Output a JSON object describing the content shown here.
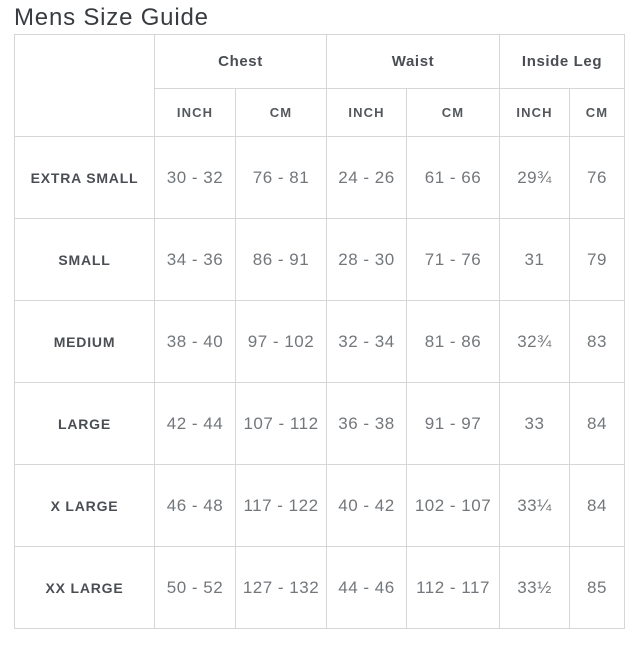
{
  "page": {
    "title": "Mens Size Guide"
  },
  "colors": {
    "border": "#d6d6d6",
    "title_text": "#383c40",
    "header_text": "#4a4e53",
    "value_text": "#73777b"
  },
  "table": {
    "groups": [
      {
        "label": "Chest"
      },
      {
        "label": "Waist"
      },
      {
        "label": "Inside Leg"
      }
    ],
    "units": [
      "INCH",
      "CM",
      "INCH",
      "CM",
      "INCH",
      "CM"
    ],
    "rows": [
      {
        "size": "EXTRA SMALL",
        "values": [
          "30 - 32",
          "76 - 81",
          "24 - 26",
          "61 - 66",
          "29¾",
          "76"
        ]
      },
      {
        "size": "SMALL",
        "values": [
          "34 - 36",
          "86 - 91",
          "28 - 30",
          "71 - 76",
          "31",
          "79"
        ]
      },
      {
        "size": "MEDIUM",
        "values": [
          "38 - 40",
          "97 - 102",
          "32 - 34",
          "81 - 86",
          "32¾",
          "83"
        ]
      },
      {
        "size": "LARGE",
        "values": [
          "42 - 44",
          "107 - 112",
          "36 - 38",
          "91 - 97",
          "33",
          "84"
        ]
      },
      {
        "size": "X LARGE",
        "values": [
          "46 - 48",
          "117 - 122",
          "40 - 42",
          "102 - 107",
          "33¼",
          "84"
        ]
      },
      {
        "size": "XX LARGE",
        "values": [
          "50 - 52",
          "127 - 132",
          "44 - 46",
          "112 - 117",
          "33½",
          "85"
        ]
      }
    ]
  }
}
